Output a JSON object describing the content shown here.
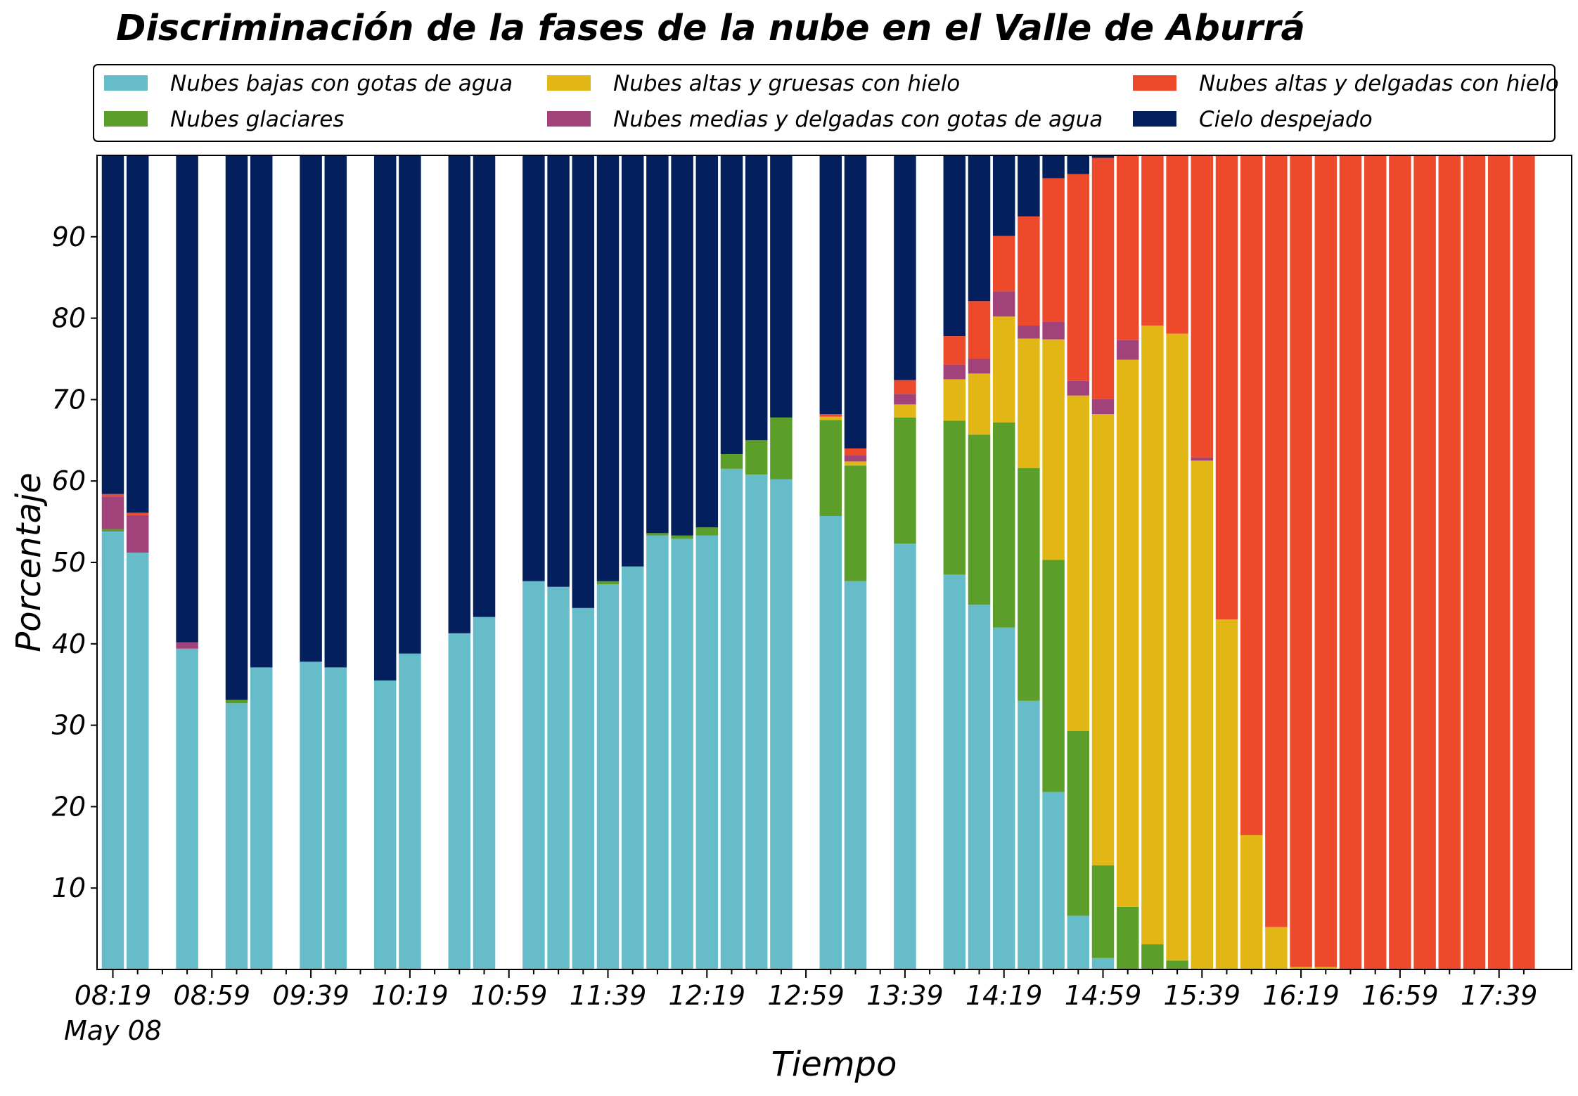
{
  "chart_data": {
    "type": "bar",
    "stacked": true,
    "title": "Discriminación de la fases de la nube en el Valle de Aburrá",
    "xlabel": "Tiempo",
    "ylabel": "Porcentaje",
    "ylim": [
      0,
      100
    ],
    "yticks": [
      10,
      20,
      30,
      40,
      50,
      60,
      70,
      80,
      90
    ],
    "x_tick_labels": [
      "08:19",
      "08:59",
      "09:39",
      "10:19",
      "10:59",
      "11:39",
      "12:19",
      "12:59",
      "13:39",
      "14:19",
      "14:59",
      "15:39",
      "16:19",
      "16:59",
      "17:39"
    ],
    "x_date_label": "May 08",
    "time_start": "08:19",
    "slot_minutes": 10,
    "slots": 58,
    "legend_position": "top (above plot, 3 columns)",
    "grid": false,
    "series": [
      {
        "name": "Nubes bajas con gotas de agua",
        "color": "#66BCC9"
      },
      {
        "name": "Nubes glaciares",
        "color": "#5B9E2A"
      },
      {
        "name": "Nubes altas y gruesas con hielo",
        "color": "#E2B715"
      },
      {
        "name": "Nubes medias y delgadas con gotas de agua",
        "color": "#A1437A"
      },
      {
        "name": "Nubes altas y delgadas con hielo",
        "color": "#EC4A2B"
      },
      {
        "name": "Cielo despejado",
        "color": "#031F5E"
      }
    ],
    "bars": [
      {
        "time": "08:19",
        "values": [
          53.8,
          0.3,
          0.0,
          4.0,
          0.3,
          41.6
        ]
      },
      {
        "time": "08:29",
        "values": [
          51.2,
          0.0,
          0.0,
          4.6,
          0.3,
          43.9
        ]
      },
      {
        "time": "08:49",
        "values": [
          39.4,
          0.0,
          0.0,
          0.8,
          0.0,
          59.8
        ]
      },
      {
        "time": "09:09",
        "values": [
          32.7,
          0.4,
          0.0,
          0.0,
          0.0,
          66.9
        ]
      },
      {
        "time": "09:19",
        "values": [
          37.1,
          0.0,
          0.0,
          0.0,
          0.0,
          62.9
        ]
      },
      {
        "time": "09:39",
        "values": [
          37.8,
          0.0,
          0.0,
          0.0,
          0.0,
          62.2
        ]
      },
      {
        "time": "09:49",
        "values": [
          37.1,
          0.0,
          0.0,
          0.0,
          0.0,
          62.9
        ]
      },
      {
        "time": "10:09",
        "values": [
          35.5,
          0.0,
          0.0,
          0.0,
          0.0,
          64.5
        ]
      },
      {
        "time": "10:19",
        "values": [
          38.8,
          0.0,
          0.0,
          0.0,
          0.0,
          61.2
        ]
      },
      {
        "time": "10:39",
        "values": [
          41.3,
          0.0,
          0.0,
          0.0,
          0.0,
          58.7
        ]
      },
      {
        "time": "10:49",
        "values": [
          43.3,
          0.0,
          0.0,
          0.0,
          0.0,
          56.7
        ]
      },
      {
        "time": "11:09",
        "values": [
          47.7,
          0.0,
          0.0,
          0.0,
          0.0,
          52.3
        ]
      },
      {
        "time": "11:19",
        "values": [
          47.0,
          0.0,
          0.0,
          0.0,
          0.0,
          53.0
        ]
      },
      {
        "time": "11:29",
        "values": [
          44.4,
          0.0,
          0.0,
          0.0,
          0.0,
          55.6
        ]
      },
      {
        "time": "11:39",
        "values": [
          47.3,
          0.4,
          0.0,
          0.0,
          0.0,
          52.3
        ]
      },
      {
        "time": "11:49",
        "values": [
          49.5,
          0.0,
          0.0,
          0.0,
          0.0,
          50.5
        ]
      },
      {
        "time": "11:59",
        "values": [
          53.3,
          0.3,
          0.0,
          0.0,
          0.0,
          46.4
        ]
      },
      {
        "time": "12:09",
        "values": [
          52.9,
          0.4,
          0.0,
          0.0,
          0.0,
          46.7
        ]
      },
      {
        "time": "12:19",
        "values": [
          53.3,
          1.0,
          0.0,
          0.0,
          0.0,
          45.7
        ]
      },
      {
        "time": "12:29",
        "values": [
          61.5,
          1.8,
          0.0,
          0.0,
          0.0,
          36.7
        ]
      },
      {
        "time": "12:39",
        "values": [
          60.8,
          4.2,
          0.0,
          0.0,
          0.0,
          35.0
        ]
      },
      {
        "time": "12:49",
        "values": [
          60.2,
          7.6,
          0.0,
          0.0,
          0.0,
          32.2
        ]
      },
      {
        "time": "13:09",
        "values": [
          55.7,
          11.8,
          0.4,
          0.0,
          0.3,
          31.8
        ]
      },
      {
        "time": "13:19",
        "values": [
          47.7,
          14.2,
          0.5,
          0.8,
          0.8,
          36.0
        ]
      },
      {
        "time": "13:39",
        "values": [
          52.3,
          15.5,
          1.6,
          1.3,
          1.7,
          27.6
        ]
      },
      {
        "time": "13:59",
        "values": [
          48.5,
          18.9,
          5.1,
          1.8,
          3.5,
          22.2
        ]
      },
      {
        "time": "14:09",
        "values": [
          44.8,
          20.9,
          7.5,
          1.8,
          7.1,
          17.9
        ]
      },
      {
        "time": "14:19",
        "values": [
          42.0,
          25.2,
          13.0,
          3.1,
          6.8,
          9.9
        ]
      },
      {
        "time": "14:29",
        "values": [
          33.0,
          28.6,
          15.9,
          1.6,
          13.4,
          7.5
        ]
      },
      {
        "time": "14:39",
        "values": [
          21.8,
          28.5,
          27.1,
          2.2,
          17.6,
          2.8
        ]
      },
      {
        "time": "14:49",
        "values": [
          6.6,
          22.7,
          41.2,
          1.8,
          25.4,
          2.3
        ]
      },
      {
        "time": "14:59",
        "values": [
          1.4,
          11.4,
          55.4,
          1.9,
          29.6,
          0.3
        ]
      },
      {
        "time": "15:09",
        "values": [
          0.0,
          7.7,
          67.2,
          2.4,
          22.7,
          0.0
        ]
      },
      {
        "time": "15:19",
        "values": [
          0.0,
          3.1,
          76.0,
          0.0,
          20.9,
          0.0
        ]
      },
      {
        "time": "15:29",
        "values": [
          0.0,
          1.1,
          77.0,
          0.0,
          21.9,
          0.0
        ]
      },
      {
        "time": "15:39",
        "values": [
          0.0,
          0.0,
          62.5,
          0.4,
          37.1,
          0.0
        ]
      },
      {
        "time": "15:49",
        "values": [
          0.0,
          0.0,
          43.0,
          0.0,
          57.0,
          0.0
        ]
      },
      {
        "time": "15:59",
        "values": [
          0.0,
          0.0,
          16.5,
          0.0,
          83.5,
          0.0
        ]
      },
      {
        "time": "16:09",
        "values": [
          0.0,
          0.0,
          5.2,
          0.0,
          94.8,
          0.0
        ]
      },
      {
        "time": "16:19",
        "values": [
          0.0,
          0.0,
          0.3,
          0.0,
          99.7,
          0.0
        ]
      },
      {
        "time": "16:29",
        "values": [
          0.0,
          0.0,
          0.3,
          0.0,
          99.7,
          0.0
        ]
      },
      {
        "time": "16:39",
        "values": [
          0.0,
          0.0,
          0.0,
          0.0,
          100.0,
          0.0
        ]
      },
      {
        "time": "16:49",
        "values": [
          0.0,
          0.0,
          0.0,
          0.0,
          100.0,
          0.0
        ]
      },
      {
        "time": "16:59",
        "values": [
          0.0,
          0.0,
          0.0,
          0.0,
          100.0,
          0.0
        ]
      },
      {
        "time": "17:09",
        "values": [
          0.0,
          0.0,
          0.0,
          0.0,
          100.0,
          0.0
        ]
      },
      {
        "time": "17:19",
        "values": [
          0.0,
          0.0,
          0.0,
          0.0,
          100.0,
          0.0
        ]
      },
      {
        "time": "17:29",
        "values": [
          0.0,
          0.0,
          0.0,
          0.0,
          100.0,
          0.0
        ]
      },
      {
        "time": "17:39",
        "values": [
          0.0,
          0.0,
          0.0,
          0.0,
          100.0,
          0.0
        ]
      },
      {
        "time": "17:49",
        "values": [
          0.0,
          0.0,
          0.0,
          0.0,
          100.0,
          0.0
        ]
      }
    ]
  }
}
